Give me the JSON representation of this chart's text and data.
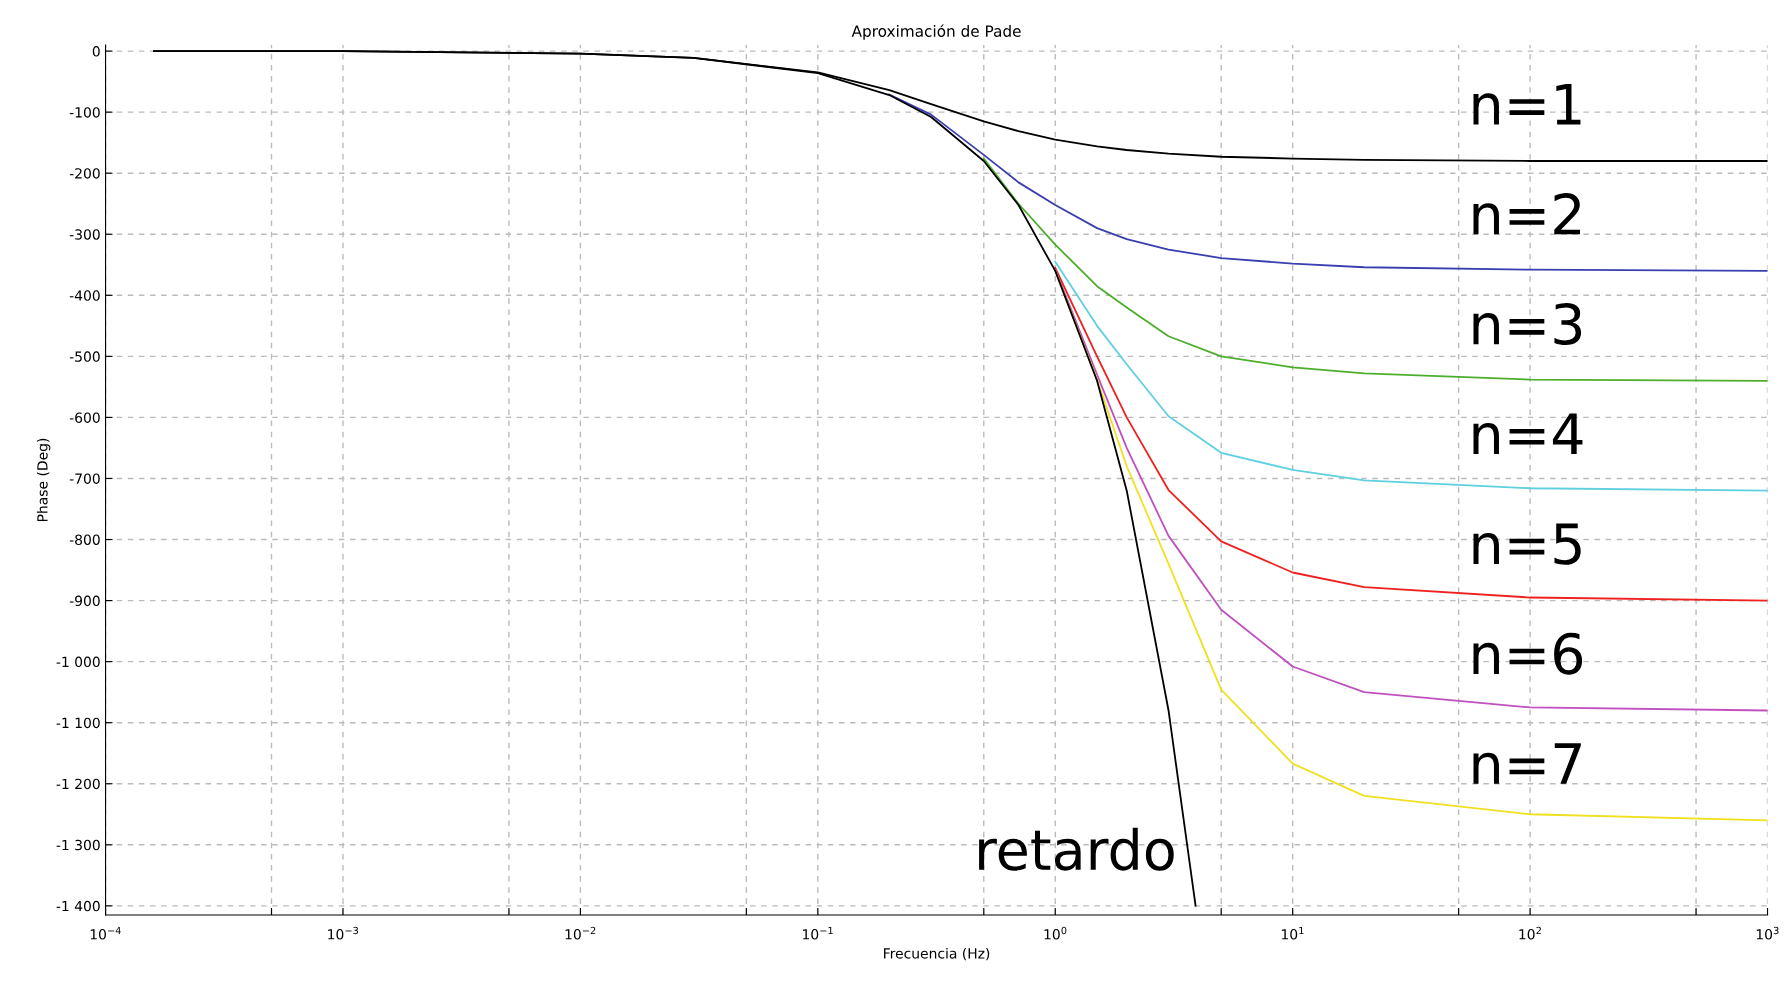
{
  "chart_data": {
    "type": "line",
    "title": "Aproximación de Pade",
    "xlabel": "Frecuencia (Hz)",
    "ylabel": "Phase (Deg)",
    "log": "x",
    "grid": true,
    "legend": false,
    "marker": "none",
    "line_style": "solid",
    "x": [
      0.00016,
      0.001,
      0.01,
      0.03,
      0.1,
      0.2,
      0.3,
      0.5,
      0.7,
      1,
      1.5,
      2,
      3,
      5,
      10,
      20,
      100,
      1000
    ],
    "xlim": [
      0.0001,
      1000
    ],
    "xticks": [
      {
        "value": 0.0001,
        "label": "10$^{−4}$"
      },
      {
        "value": 0.0005,
        "label": null
      },
      {
        "value": 0.001,
        "label": "10$^{−3}$"
      },
      {
        "value": 0.005,
        "label": null
      },
      {
        "value": 0.01,
        "label": "10$^{−2}$"
      },
      {
        "value": 0.05,
        "label": null
      },
      {
        "value": 0.1,
        "label": "10$^{−1}$"
      },
      {
        "value": 0.5,
        "label": null
      },
      {
        "value": 1,
        "label": "10$^{0}$"
      },
      {
        "value": 5,
        "label": null
      },
      {
        "value": 10,
        "label": "10$^{1}$"
      },
      {
        "value": 50,
        "label": null
      },
      {
        "value": 100,
        "label": "10$^{2}$"
      },
      {
        "value": 500,
        "label": null
      },
      {
        "value": 1000,
        "label": "10$^{3}$"
      }
    ],
    "ylim": [
      -1415,
      10
    ],
    "yticks": [
      0,
      {
        "value": -100,
        "label": "-100"
      },
      {
        "value": -200,
        "label": "-200"
      },
      {
        "value": -300,
        "label": "-300"
      },
      {
        "value": -400,
        "label": "-400"
      },
      {
        "value": -500,
        "label": "-500"
      },
      {
        "value": -600,
        "label": "-600"
      },
      {
        "value": -700,
        "label": "-700"
      },
      {
        "value": -800,
        "label": "-800"
      },
      {
        "value": -900,
        "label": "-900"
      },
      {
        "value": -1000,
        "label": "-1 000"
      },
      {
        "value": -1100,
        "label": "-1 100"
      },
      {
        "value": -1200,
        "label": "-1 200"
      },
      {
        "value": -1300,
        "label": "-1 300"
      },
      {
        "value": -1400,
        "label": "-1 400"
      }
    ],
    "series": [
      {
        "name": "n=1",
        "color": "#000000",
        "values": [
          0,
          0,
          -4,
          -11,
          -35,
          -64,
          -87,
          -115,
          -131,
          -145,
          -156,
          -162,
          -168,
          -173,
          -176,
          -178,
          -180,
          -180
        ]
      },
      {
        "name": "n=2",
        "color": "#3a3fb0",
        "values": [
          null,
          null,
          null,
          null,
          null,
          -71,
          -104,
          -170,
          -215,
          -252,
          -290,
          -308,
          -325,
          -339,
          -348,
          -354,
          -358,
          -360
        ]
      },
      {
        "name": "n=3",
        "color": "#4cae2c",
        "values": [
          null,
          null,
          null,
          null,
          null,
          null,
          null,
          -176,
          -250,
          -317,
          -385,
          -420,
          -467,
          -500,
          -518,
          -528,
          -538,
          -540
        ]
      },
      {
        "name": "n=4",
        "color": "#5fd0e0",
        "values": [
          null,
          null,
          null,
          null,
          null,
          null,
          null,
          null,
          null,
          -345,
          -450,
          -513,
          -598,
          -658,
          -686,
          -703,
          -716,
          -720
        ]
      },
      {
        "name": "n=5",
        "color": "#ee2020",
        "values": [
          null,
          null,
          null,
          null,
          null,
          null,
          null,
          null,
          null,
          -355,
          -500,
          -600,
          -719,
          -803,
          -854,
          -878,
          -895,
          -900
        ]
      },
      {
        "name": "n=6",
        "color": "#c050c0",
        "values": [
          null,
          null,
          null,
          null,
          null,
          null,
          null,
          null,
          null,
          -358,
          -530,
          -650,
          -794,
          -915,
          -1008,
          -1050,
          -1075,
          -1080
        ]
      },
      {
        "name": "n=7",
        "color": "#f0e020",
        "values": [
          null,
          null,
          null,
          null,
          null,
          null,
          null,
          null,
          null,
          -360,
          -538,
          -680,
          -840,
          -1046,
          -1167,
          -1220,
          -1250,
          -1260
        ]
      },
      {
        "name": "retardo",
        "color": "#000000",
        "x": [
          0.00016,
          0.001,
          0.01,
          0.03,
          0.1,
          0.2,
          0.3,
          0.5,
          0.7,
          1,
          1.5,
          2,
          3,
          3.9
        ],
        "values": [
          0,
          0,
          -4,
          -11,
          -36,
          -72,
          -108,
          -180,
          -252,
          -360,
          -540,
          -720,
          -1080,
          -1400
        ]
      }
    ]
  }
}
